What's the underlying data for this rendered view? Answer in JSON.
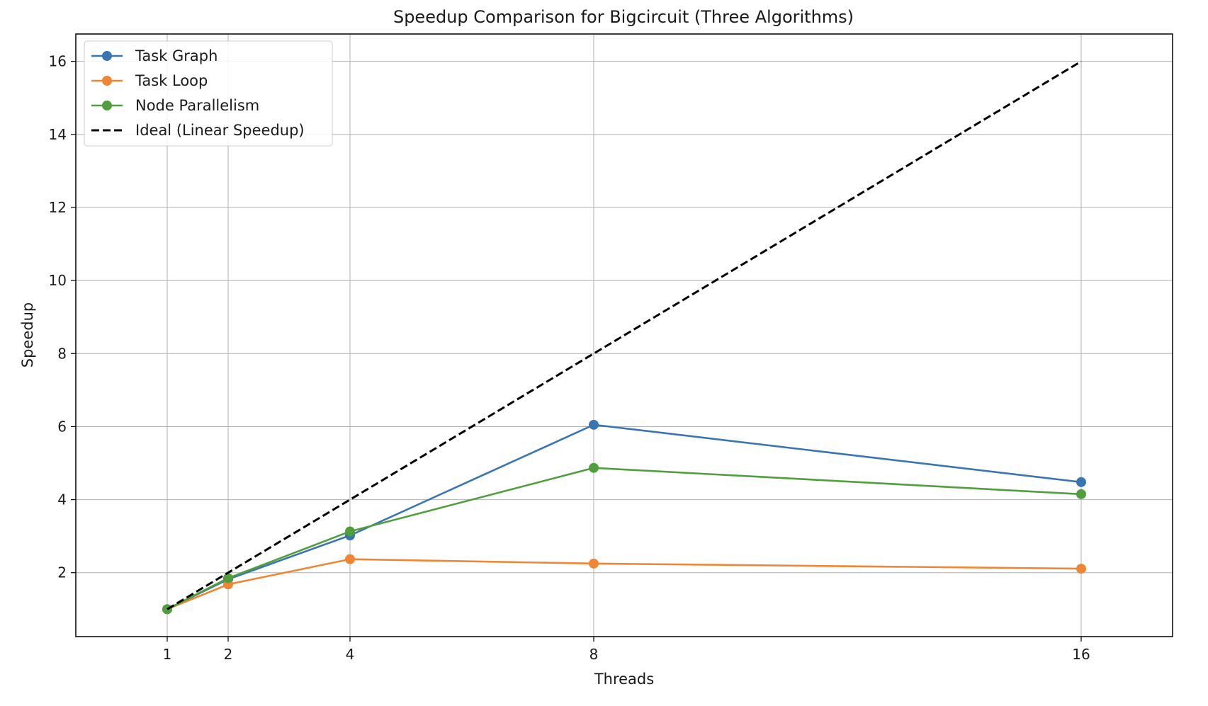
{
  "chart_data": {
    "type": "line",
    "title": "Speedup Comparison for Bigcircuit (Three Algorithms)",
    "xlabel": "Threads",
    "ylabel": "Speedup",
    "x": [
      1,
      2,
      4,
      8,
      16
    ],
    "xticks": [
      1,
      2,
      4,
      8,
      16
    ],
    "xlim": [
      -0.5,
      17.5
    ],
    "yticks": [
      2,
      4,
      6,
      8,
      10,
      12,
      14,
      16
    ],
    "ylim": [
      0.25,
      16.75
    ],
    "grid": true,
    "legend_position": "top-left",
    "series": [
      {
        "name": "Task Graph",
        "values": [
          1.0,
          1.82,
          3.02,
          6.05,
          4.48
        ],
        "color": "#3b75af",
        "style": "solid",
        "marker": "circle"
      },
      {
        "name": "Task Loop",
        "values": [
          1.0,
          1.68,
          2.37,
          2.25,
          2.11
        ],
        "color": "#ef8636",
        "style": "solid",
        "marker": "circle"
      },
      {
        "name": "Node Parallelism",
        "values": [
          1.0,
          1.85,
          3.13,
          4.87,
          4.15
        ],
        "color": "#519e3e",
        "style": "solid",
        "marker": "circle"
      },
      {
        "name": "Ideal (Linear Speedup)",
        "values": [
          1,
          2,
          4,
          8,
          16
        ],
        "color": "#000000",
        "style": "dashed",
        "marker": "none"
      }
    ]
  }
}
